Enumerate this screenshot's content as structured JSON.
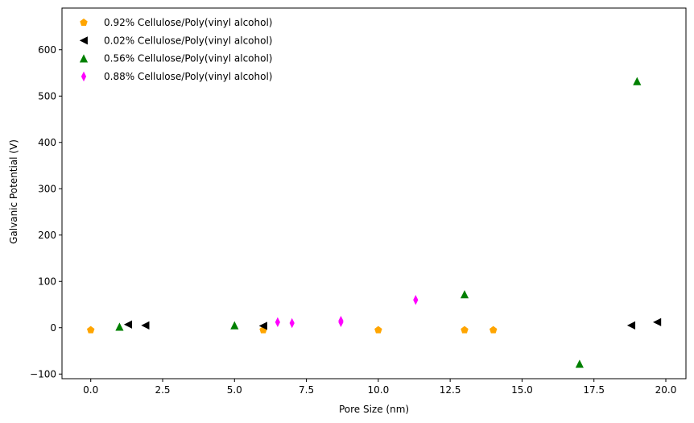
{
  "chart_data": {
    "type": "scatter",
    "title": "",
    "xlabel": "Pore Size (nm)",
    "ylabel": "Galvanic Potential (V)",
    "xlim": [
      -1.0,
      20.7
    ],
    "ylim": [
      -110,
      690
    ],
    "xticks": [
      0.0,
      2.5,
      5.0,
      7.5,
      10.0,
      12.5,
      15.0,
      17.5,
      20.0
    ],
    "xtick_labels": [
      "0.0",
      "2.5",
      "5.0",
      "7.5",
      "10.0",
      "12.5",
      "15.0",
      "17.5",
      "20.0"
    ],
    "yticks": [
      -100,
      0,
      100,
      200,
      300,
      400,
      500,
      600
    ],
    "ytick_labels": [
      "−100",
      "0",
      "100",
      "200",
      "300",
      "400",
      "500",
      "600"
    ],
    "legend_position": "top-left",
    "grid": false,
    "series": [
      {
        "name": "0.92% Cellulose/Poly(vinyl alcohol)",
        "marker": "pentagon",
        "color": "#ffa500",
        "points": [
          [
            0.0,
            -5
          ],
          [
            6.0,
            -5
          ],
          [
            10.0,
            -5
          ],
          [
            13.0,
            -5
          ],
          [
            14.0,
            -5
          ]
        ]
      },
      {
        "name": "0.02% Cellulose/Poly(vinyl alcohol)",
        "marker": "triangle-left",
        "color": "#000000",
        "points": [
          [
            1.3,
            7
          ],
          [
            1.9,
            5
          ],
          [
            6.0,
            4
          ],
          [
            18.8,
            5
          ],
          [
            19.7,
            12
          ]
        ]
      },
      {
        "name": "0.56% Cellulose/Poly(vinyl alcohol)",
        "marker": "triangle-up",
        "color": "#008000",
        "points": [
          [
            1.0,
            2
          ],
          [
            5.0,
            5
          ],
          [
            13.0,
            72
          ],
          [
            17.0,
            -78
          ],
          [
            19.0,
            532
          ]
        ]
      },
      {
        "name": "0.88% Cellulose/Poly(vinyl alcohol)",
        "marker": "thin-diamond",
        "color": "#ff00ff",
        "points": [
          [
            6.5,
            12
          ],
          [
            7.0,
            10
          ],
          [
            8.7,
            12
          ],
          [
            8.7,
            15
          ],
          [
            11.3,
            60
          ]
        ]
      }
    ]
  }
}
